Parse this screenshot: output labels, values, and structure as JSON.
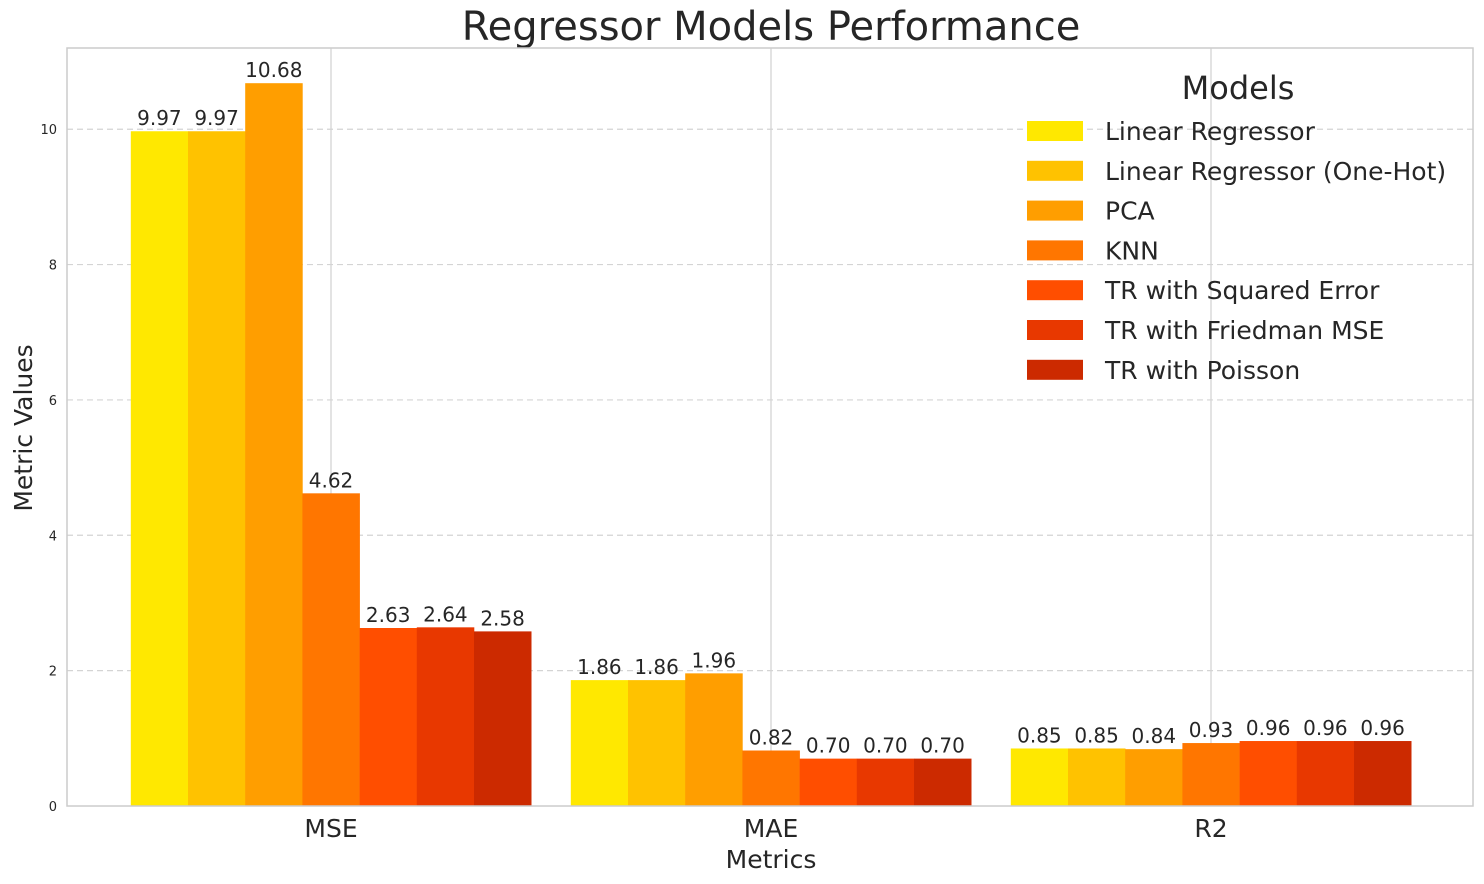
{
  "chart_data": {
    "type": "bar",
    "title": "Regressor Models Performance",
    "xlabel": "Metrics",
    "ylabel": "Metric Values",
    "categories": [
      "MSE",
      "MAE",
      "R2"
    ],
    "ylim": [
      0,
      11.2
    ],
    "yticks": [
      0,
      2,
      4,
      6,
      8,
      10
    ],
    "grid": true,
    "legend": {
      "title": "Models",
      "position": "top-right"
    },
    "series": [
      {
        "name": "Linear Regressor",
        "color": "#FFE800",
        "values": [
          9.97,
          1.86,
          0.85
        ],
        "labels": [
          "9.97",
          "1.86",
          "0.85"
        ]
      },
      {
        "name": "Linear Regressor (One-Hot)",
        "color": "#FFC200",
        "values": [
          9.97,
          1.86,
          0.85
        ],
        "labels": [
          "9.97",
          "1.86",
          "0.85"
        ]
      },
      {
        "name": "PCA",
        "color": "#FF9E00",
        "values": [
          10.68,
          1.96,
          0.84
        ],
        "labels": [
          "10.68",
          "1.96",
          "0.84"
        ]
      },
      {
        "name": "KNN",
        "color": "#FF7600",
        "values": [
          4.62,
          0.82,
          0.93
        ],
        "labels": [
          "4.62",
          "0.82",
          "0.93"
        ]
      },
      {
        "name": "TR with Squared Error",
        "color": "#FF4E00",
        "values": [
          2.63,
          0.7,
          0.96
        ],
        "labels": [
          "2.63",
          "0.70",
          "0.96"
        ]
      },
      {
        "name": "TR with Friedman MSE",
        "color": "#E83800",
        "values": [
          2.64,
          0.7,
          0.96
        ],
        "labels": [
          "2.64",
          "0.70",
          "0.96"
        ]
      },
      {
        "name": "TR with Poisson",
        "color": "#CC2A00",
        "values": [
          2.58,
          0.7,
          0.96
        ],
        "labels": [
          "2.58",
          "0.70",
          "0.96"
        ]
      }
    ]
  }
}
